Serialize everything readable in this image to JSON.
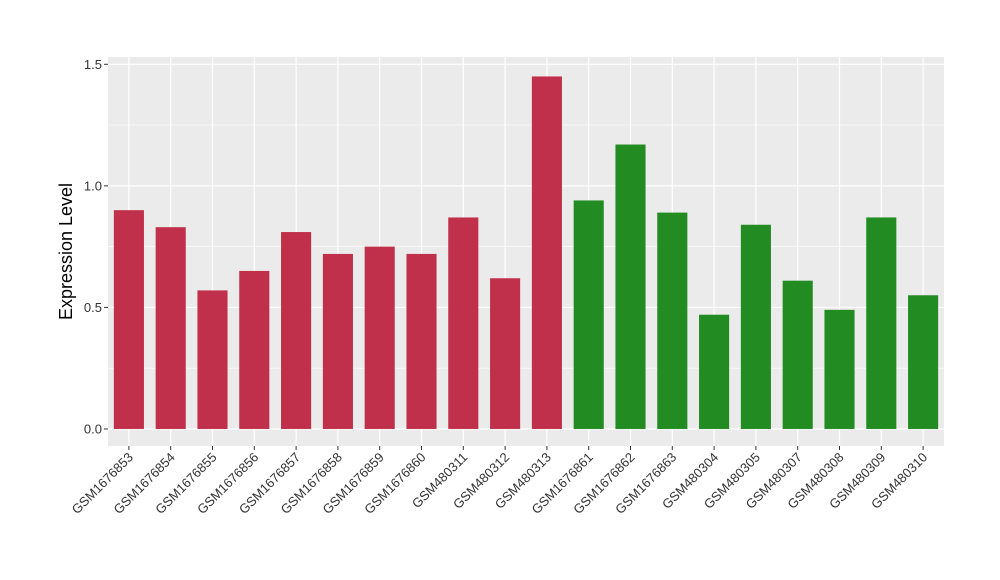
{
  "chart_data": {
    "type": "bar",
    "ylabel": "Expression Level",
    "xlabel": "",
    "ylim": [
      -0.07,
      1.53
    ],
    "yticks": [
      0.0,
      0.5,
      1.0,
      1.5
    ],
    "ytick_labels": [
      "0.0",
      "0.5",
      "1.0",
      "1.5"
    ],
    "grid": true,
    "categories": [
      "GSM1676853",
      "GSM1676854",
      "GSM1676855",
      "GSM1676856",
      "GSM1676857",
      "GSM1676858",
      "GSM1676859",
      "GSM1676860",
      "GSM480311",
      "GSM480312",
      "GSM480313",
      "GSM1676861",
      "GSM1676862",
      "GSM1676863",
      "GSM480304",
      "GSM480305",
      "GSM480307",
      "GSM480308",
      "GSM480309",
      "GSM480310"
    ],
    "values": [
      0.9,
      0.83,
      0.57,
      0.65,
      0.81,
      0.72,
      0.75,
      0.72,
      0.87,
      0.62,
      1.45,
      0.94,
      1.17,
      0.89,
      0.47,
      0.84,
      0.61,
      0.49,
      0.87,
      0.55
    ],
    "bar_colors": [
      "#C0304A",
      "#C0304A",
      "#C0304A",
      "#C0304A",
      "#C0304A",
      "#C0304A",
      "#C0304A",
      "#C0304A",
      "#C0304A",
      "#C0304A",
      "#C0304A",
      "#228B22",
      "#228B22",
      "#228B22",
      "#228B22",
      "#228B22",
      "#228B22",
      "#228B22",
      "#228B22",
      "#228B22"
    ],
    "colors": {
      "panel": "#EBEBEB",
      "grid": "#FFFFFF"
    }
  }
}
